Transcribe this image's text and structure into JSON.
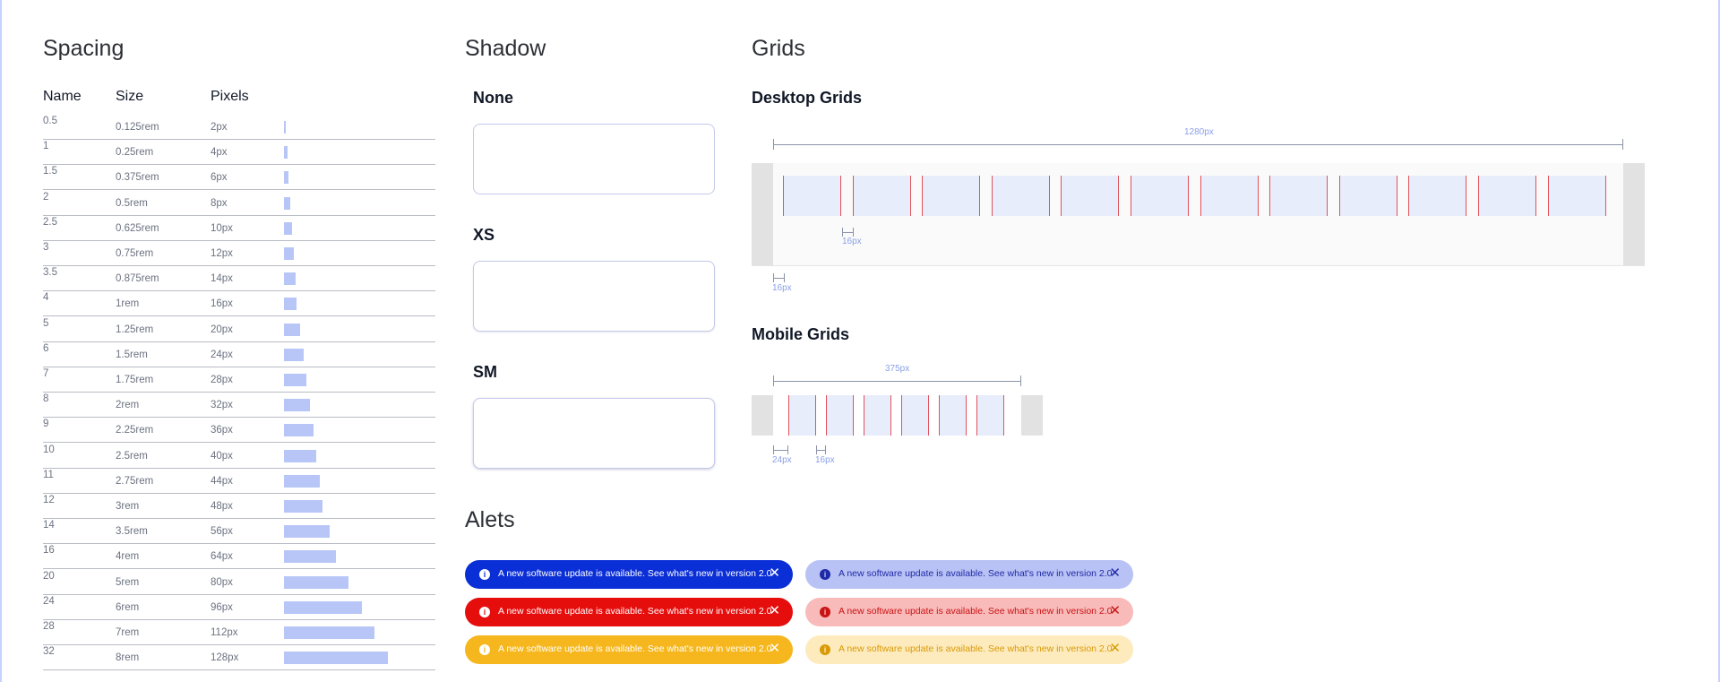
{
  "sections": {
    "spacing": "Spacing",
    "shadow": "Shadow",
    "grids": "Grids",
    "alerts": "Alets"
  },
  "spacing": {
    "headers": {
      "name": "Name",
      "size": "Size",
      "pixels": "Pixels"
    },
    "rows": [
      {
        "name": "0.5",
        "size": "0.125rem",
        "px": "2px",
        "value": 2
      },
      {
        "name": "1",
        "size": "0.25rem",
        "px": "4px",
        "value": 4
      },
      {
        "name": "1.5",
        "size": "0.375rem",
        "px": "6px",
        "value": 6
      },
      {
        "name": "2",
        "size": "0.5rem",
        "px": "8px",
        "value": 8
      },
      {
        "name": "2.5",
        "size": "0.625rem",
        "px": "10px",
        "value": 10
      },
      {
        "name": "3",
        "size": "0.75rem",
        "px": "12px",
        "value": 12
      },
      {
        "name": "3.5",
        "size": "0.875rem",
        "px": "14px",
        "value": 14
      },
      {
        "name": "4",
        "size": "1rem",
        "px": "16px",
        "value": 16
      },
      {
        "name": "5",
        "size": "1.25rem",
        "px": "20px",
        "value": 20
      },
      {
        "name": "6",
        "size": "1.5rem",
        "px": "24px",
        "value": 24
      },
      {
        "name": "7",
        "size": "1.75rem",
        "px": "28px",
        "value": 28
      },
      {
        "name": "8",
        "size": "2rem",
        "px": "32px",
        "value": 32
      },
      {
        "name": "9",
        "size": "2.25rem",
        "px": "36px",
        "value": 36
      },
      {
        "name": "10",
        "size": "2.5rem",
        "px": "40px",
        "value": 40
      },
      {
        "name": "11",
        "size": "2.75rem",
        "px": "44px",
        "value": 44
      },
      {
        "name": "12",
        "size": "3rem",
        "px": "48px",
        "value": 48
      },
      {
        "name": "14",
        "size": "3.5rem",
        "px": "56px",
        "value": 56
      },
      {
        "name": "16",
        "size": "4rem",
        "px": "64px",
        "value": 64
      },
      {
        "name": "20",
        "size": "5rem",
        "px": "80px",
        "value": 80
      },
      {
        "name": "24",
        "size": "6rem",
        "px": "96px",
        "value": 96
      },
      {
        "name": "28",
        "size": "7rem",
        "px": "112px",
        "value": 112
      },
      {
        "name": "32",
        "size": "8rem",
        "px": "128px",
        "value": 128
      }
    ]
  },
  "shadow": {
    "items": [
      {
        "label": "None"
      },
      {
        "label": "XS"
      },
      {
        "label": "SM"
      }
    ]
  },
  "grids": {
    "desktop": {
      "title": "Desktop Grids",
      "width_label": "1280px",
      "gutter_label": "16px",
      "margin_label": "16px",
      "columns": 12
    },
    "mobile": {
      "title": "Mobile Grids",
      "width_label": "375px",
      "margin_label": "24px",
      "gutter_label": "16px",
      "columns": 6
    }
  },
  "alerts": {
    "message": "A new software update is available. See what's new in version 2.0",
    "info_icon": "i",
    "close_icon": "✕",
    "items": [
      {
        "variant": "blue-solid",
        "bg": "#0b2fd6",
        "fg": "#ffffff",
        "icon_bg": "#ffffff",
        "icon_fg": "#0b2fd6"
      },
      {
        "variant": "blue-soft",
        "bg": "#b8c2f5",
        "fg": "#1f2aa6",
        "icon_bg": "#1f2aa6",
        "icon_fg": "#b8c2f5"
      },
      {
        "variant": "red-solid",
        "bg": "#e60d0d",
        "fg": "#ffffff",
        "icon_bg": "#ffffff",
        "icon_fg": "#e60d0d"
      },
      {
        "variant": "red-soft",
        "bg": "#f9baba",
        "fg": "#c81414",
        "icon_bg": "#c81414",
        "icon_fg": "#f9baba"
      },
      {
        "variant": "yellow-solid",
        "bg": "#f6b71e",
        "fg": "#ffffff",
        "icon_bg": "#ffffff",
        "icon_fg": "#f6b71e"
      },
      {
        "variant": "yellow-soft",
        "bg": "#fdebbd",
        "fg": "#d99a06",
        "icon_bg": "#d99a06",
        "icon_fg": "#fdebbd"
      }
    ]
  },
  "colors": {
    "accent_bar": "#b8c6f7",
    "grid_column": "#e8edfb",
    "grid_gutter_line": "#e0525c",
    "measure": "#8aa0e6"
  }
}
